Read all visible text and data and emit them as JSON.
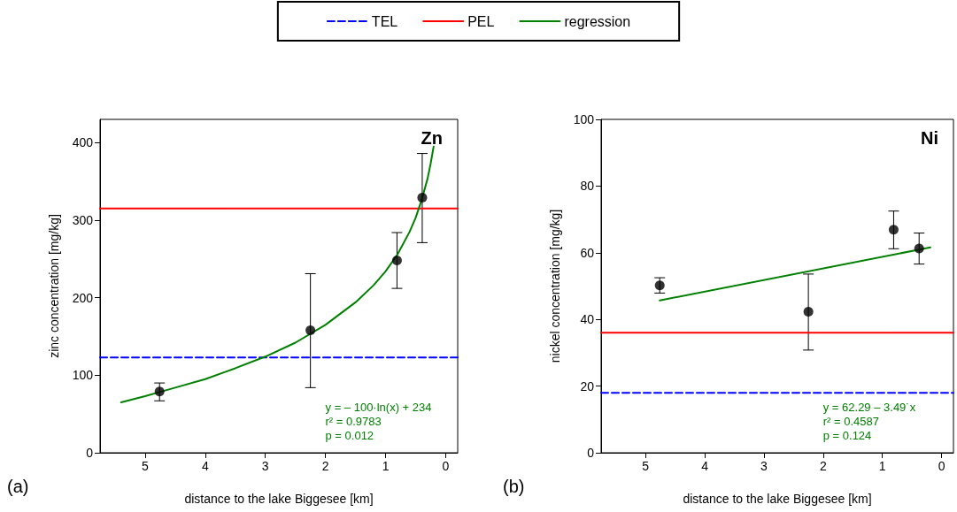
{
  "chart_data": [
    {
      "type": "scatter",
      "title": "Zn",
      "xlabel": "distance to the lake Biggesee [km]",
      "ylabel": "zinc concentration [mg/kg]",
      "xlim": [
        5.75,
        -0.2
      ],
      "xticks": [
        5,
        4,
        3,
        2,
        1,
        0
      ],
      "ylim": [
        0,
        430
      ],
      "yticks": [
        0,
        100,
        200,
        300,
        400
      ],
      "grid": false,
      "legend": "top",
      "annotations": [
        "y = – 100·ln(x) + 234",
        "r² = 0.9783",
        "p = 0.012",
        "(a)"
      ],
      "series": [
        {
          "name": "TEL",
          "type": "line",
          "marker": "none",
          "line_style": "dashed",
          "color": "#0000ff",
          "x": [
            5.75,
            -0.2
          ],
          "values": [
            123,
            123
          ]
        },
        {
          "name": "PEL",
          "type": "line",
          "marker": "none",
          "line_style": "solid",
          "color": "#ff0000",
          "x": [
            5.75,
            -0.2
          ],
          "values": [
            315,
            315
          ]
        },
        {
          "name": "regression",
          "type": "line",
          "marker": "none",
          "line_style": "solid",
          "color": "#008000",
          "x": [
            5.4,
            5,
            4.5,
            4,
            3.5,
            3,
            2.5,
            2,
            1.5,
            1.2,
            1,
            0.8,
            0.6,
            0.5,
            0.4,
            0.3,
            0.25,
            0.2
          ],
          "values": [
            65,
            73,
            84,
            95,
            109,
            124,
            142,
            165,
            194,
            216,
            234,
            256,
            285,
            303,
            326,
            354,
            373,
            395
          ]
        },
        {
          "marker": "circle",
          "color": "#000000",
          "x": [
            4.76,
            2.25,
            0.81,
            0.39
          ],
          "values": [
            79,
            158,
            248,
            329
          ],
          "errors": [
            [
              67,
              90
            ],
            [
              84,
              231
            ],
            [
              212,
              284
            ],
            [
              271,
              386
            ]
          ]
        }
      ]
    },
    {
      "type": "scatter",
      "title": "Ni",
      "xlabel": "distance to the lake Biggesee [km]",
      "ylabel": "nickel concentration [mg/kg]",
      "xlim": [
        5.75,
        -0.2
      ],
      "xticks": [
        5,
        4,
        3,
        2,
        1,
        0
      ],
      "ylim": [
        0,
        100
      ],
      "yticks": [
        0,
        20,
        40,
        60,
        80,
        100
      ],
      "grid": false,
      "annotations": [
        "y = 62.29 – 3.49˙x",
        "r² = 0.4587",
        "p = 0.124",
        "(b)"
      ],
      "series": [
        {
          "type": "line",
          "marker": "none",
          "line_style": "dashed",
          "color": "#0000ff",
          "x": [
            5.75,
            -0.2
          ],
          "values": [
            18,
            18
          ]
        },
        {
          "type": "line",
          "marker": "none",
          "line_style": "solid",
          "color": "#ff0000",
          "x": [
            5.75,
            -0.2
          ],
          "values": [
            36,
            36
          ]
        },
        {
          "type": "line",
          "marker": "none",
          "line_style": "solid",
          "color": "#008000",
          "x": [
            4.76,
            0.19
          ],
          "values": [
            45.7,
            61.6
          ]
        },
        {
          "marker": "circle",
          "color": "#000000",
          "x": [
            4.76,
            2.25,
            0.81,
            0.38
          ],
          "values": [
            50.2,
            42.3,
            66.9,
            61.3
          ],
          "errors": [
            [
              47.9,
              52.5
            ],
            [
              30.8,
              53.6
            ],
            [
              61.2,
              72.5
            ],
            [
              56.6,
              65.9
            ]
          ]
        }
      ]
    }
  ]
}
